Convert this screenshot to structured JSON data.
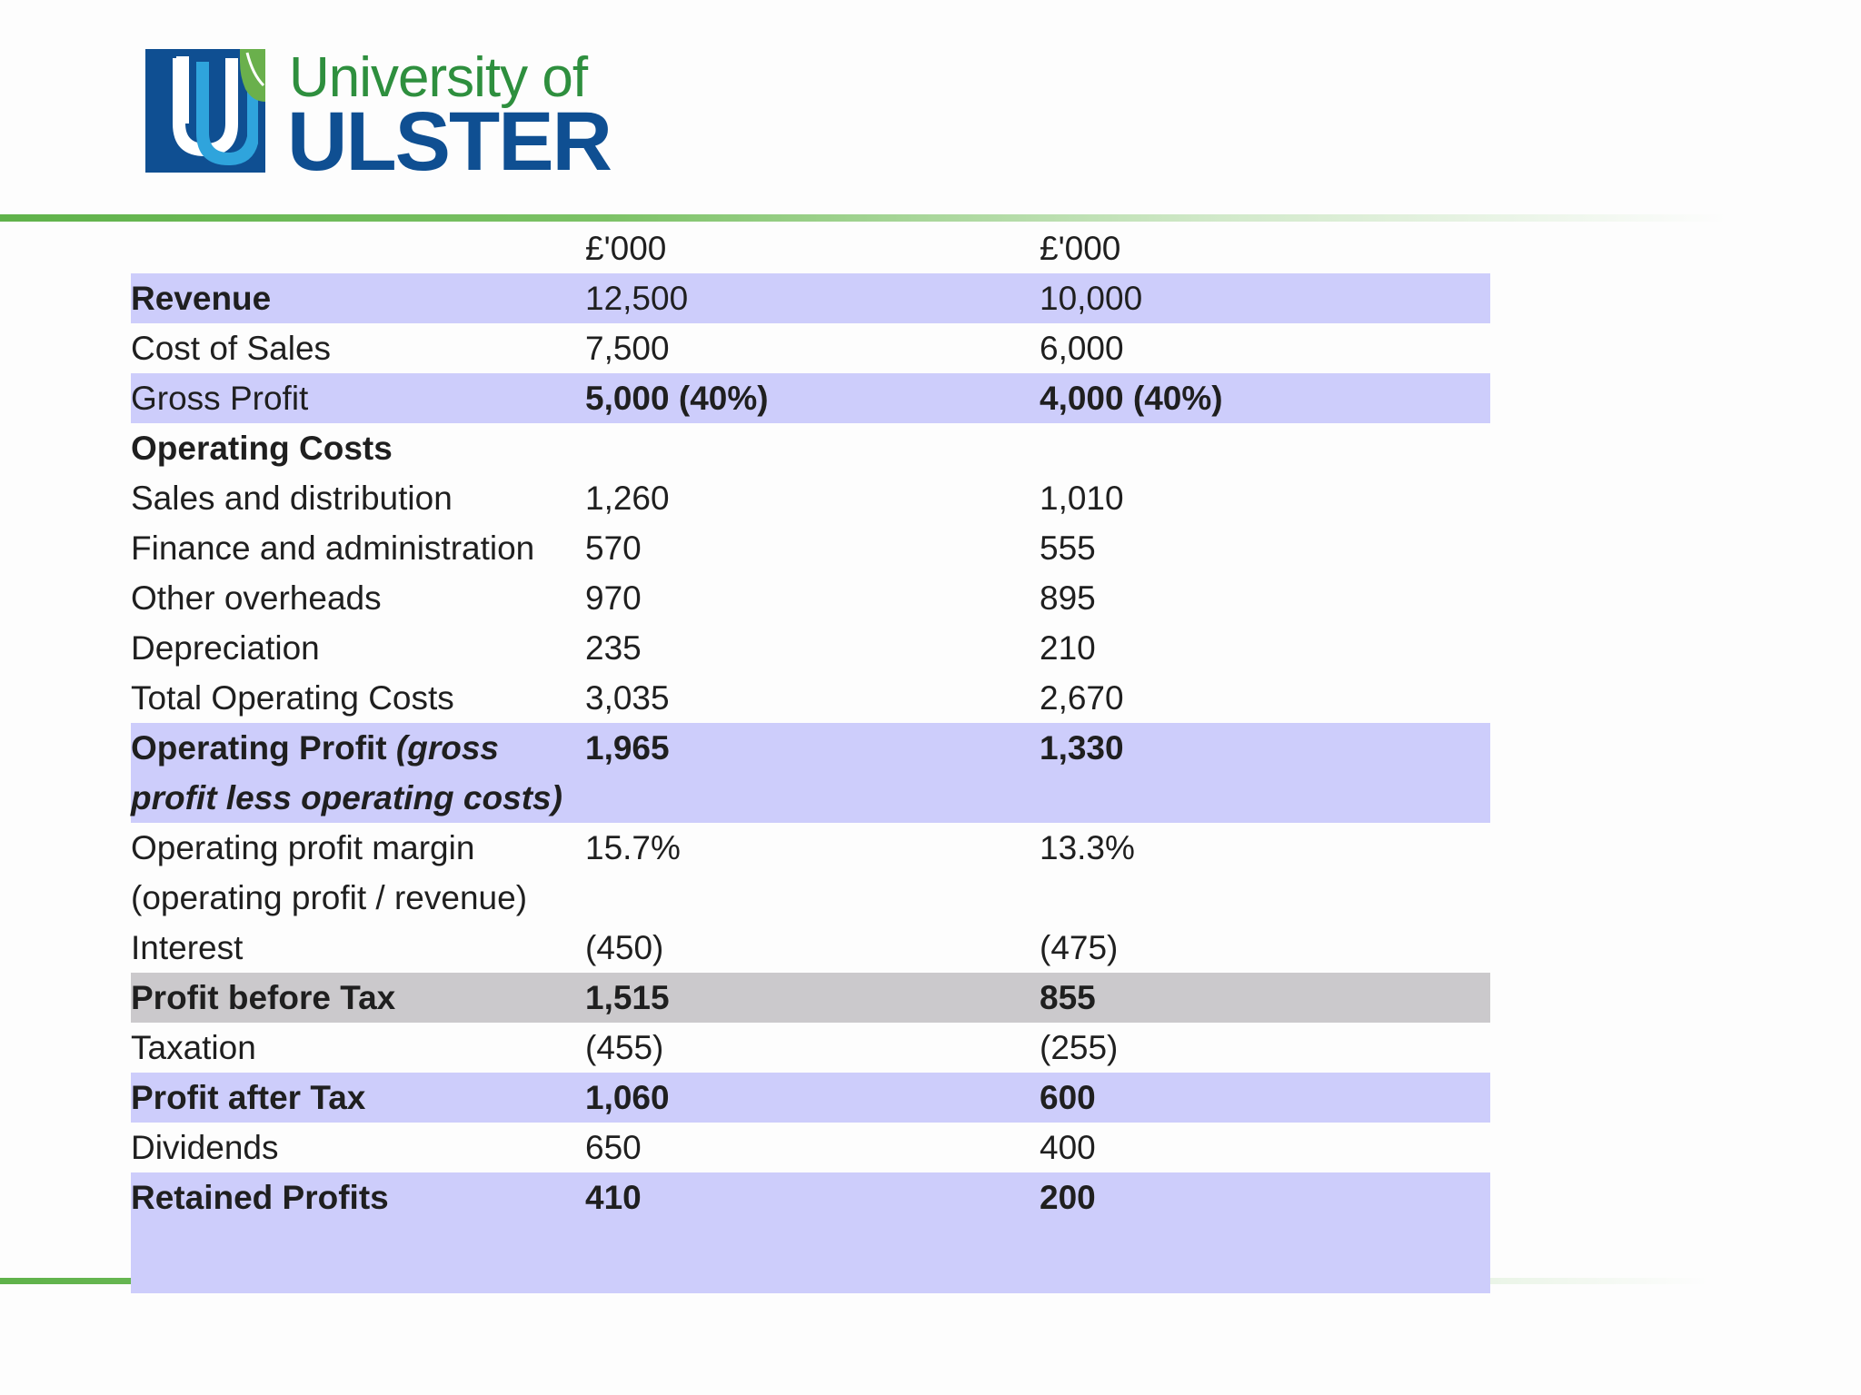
{
  "logo": {
    "line1": "University of",
    "line2": "ULSTER",
    "colors": {
      "blue": "#0f4f92",
      "green": "#2e8f3e",
      "light_blue": "#2fa4dc"
    }
  },
  "colors": {
    "row_highlight": "#cdcdfb",
    "row_grey": "#cbc9cc",
    "accent_rule": "#5fb24a"
  },
  "table": {
    "header": {
      "col1": "£'000",
      "col2": "£'000"
    },
    "rows": [
      {
        "label": "Revenue",
        "v1": "12,500",
        "v2": "10,000"
      },
      {
        "label": "Cost of Sales",
        "v1": "7,500",
        "v2": "6,000"
      },
      {
        "label": "Gross Profit",
        "v1": "5,000 (40%)",
        "v2": "4,000 (40%)"
      },
      {
        "label": "Operating Costs",
        "v1": "",
        "v2": ""
      },
      {
        "label": "Sales and distribution",
        "v1": "1,260",
        "v2": "1,010"
      },
      {
        "label": "Finance and administration",
        "v1": "570",
        "v2": "555"
      },
      {
        "label": "Other overheads",
        "v1": "970",
        "v2": "895"
      },
      {
        "label": "Depreciation",
        "v1": "235",
        "v2": "210"
      },
      {
        "label": "Total Operating Costs",
        "v1": "3,035",
        "v2": "2,670"
      },
      {
        "label": "Operating Profit",
        "label_note": "(gross profit less operating costs)",
        "v1": "1,965",
        "v2": "1,330"
      },
      {
        "label": "Operating profit margin (operating profit / revenue)",
        "v1": "15.7%",
        "v2": "13.3%"
      },
      {
        "label": "Interest",
        "v1": "(450)",
        "v2": "(475)"
      },
      {
        "label": "Profit before Tax",
        "v1": "1,515",
        "v2": "855"
      },
      {
        "label": "Taxation",
        "v1": "(455)",
        "v2": "(255)"
      },
      {
        "label": "Profit after Tax",
        "v1": "1,060",
        "v2": "600"
      },
      {
        "label": "Dividends",
        "v1": "650",
        "v2": "400"
      },
      {
        "label": "Retained Profits",
        "v1": "410",
        "v2": "200"
      }
    ]
  }
}
